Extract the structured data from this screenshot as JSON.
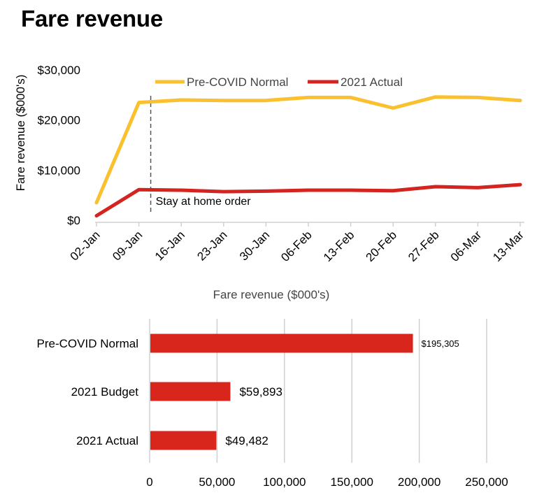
{
  "page": {
    "title": "Fare revenue"
  },
  "colors": {
    "pre_covid": "#FBC02D",
    "actual": "#D32420",
    "bar": "#D9261C",
    "grid": "#D0D0D0",
    "annotation": "#555555"
  },
  "chart_data": [
    {
      "type": "line",
      "title": "",
      "xlabel": "",
      "ylabel": "Fare revenue ($000's)",
      "ylim": [
        0,
        30000
      ],
      "yticks": [
        "$0",
        "$10,000",
        "$20,000",
        "$30,000"
      ],
      "ytick_values": [
        0,
        10000,
        20000,
        30000
      ],
      "x": [
        "02-Jan",
        "09-Jan",
        "16-Jan",
        "23-Jan",
        "30-Jan",
        "06-Feb",
        "13-Feb",
        "20-Feb",
        "27-Feb",
        "06-Mar",
        "13-Mar"
      ],
      "legend": "top-center",
      "grid": false,
      "series": [
        {
          "name": "Pre-COVID Normal",
          "color": "#FBC02D",
          "values": [
            3500,
            23500,
            24000,
            23900,
            23900,
            24500,
            24500,
            22400,
            24600,
            24500,
            23900
          ]
        },
        {
          "name": "2021 Actual",
          "color": "#D32420",
          "values": [
            900,
            6100,
            6000,
            5700,
            5800,
            6000,
            6000,
            5900,
            6700,
            6500,
            7100
          ]
        }
      ],
      "annotations": [
        {
          "text": "Stay at home order",
          "x_between": [
            "09-Jan",
            "16-Jan"
          ],
          "x_fraction": 0.28,
          "style": "dashed-vertical-line"
        }
      ]
    },
    {
      "type": "bar",
      "orientation": "horizontal",
      "title": "Fare revenue ($000's)",
      "xlabel": "",
      "ylabel": "",
      "xlim": [
        0,
        280000
      ],
      "xticks": [
        "0",
        "50,000",
        "100,000",
        "150,000",
        "200,000",
        "250,000"
      ],
      "xtick_values": [
        0,
        50000,
        100000,
        150000,
        200000,
        250000
      ],
      "grid": true,
      "categories": [
        "Pre-COVID Normal",
        "2021 Budget",
        "2021 Actual"
      ],
      "values": [
        195305,
        59893,
        49482
      ],
      "data_labels": [
        "$195,305",
        "$59,893",
        "$49,482"
      ]
    }
  ]
}
